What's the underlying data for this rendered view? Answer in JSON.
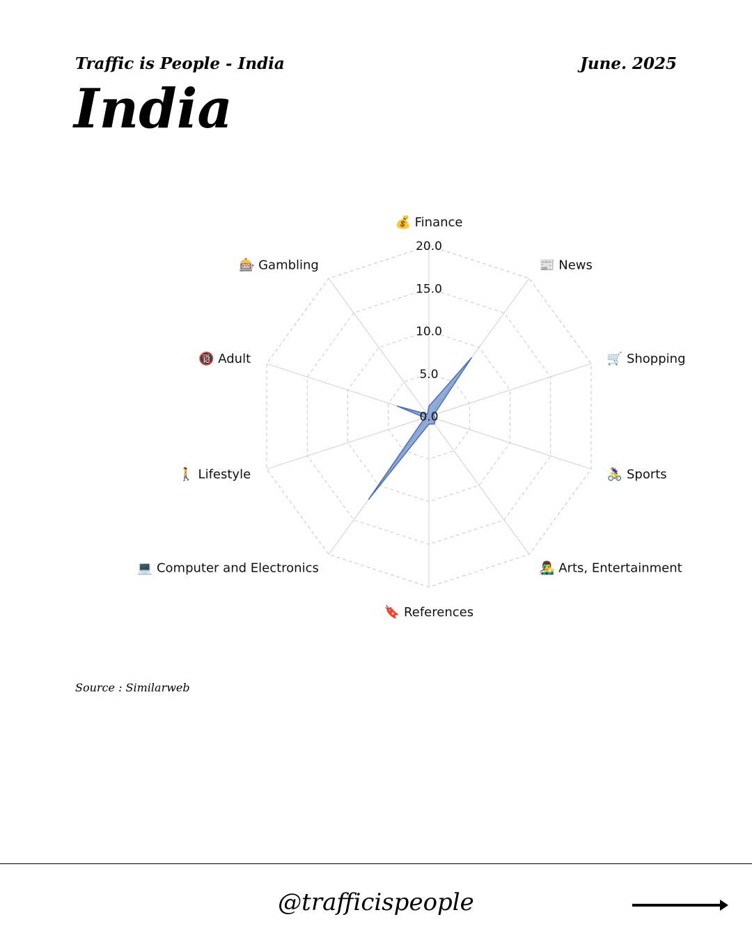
{
  "header": {
    "left": "Traffic is People - India",
    "right": "June. 2025"
  },
  "title": "India",
  "source": "Source : Similarweb",
  "footer": {
    "handle": "@trafficispeople"
  },
  "chart_data": {
    "type": "radar",
    "categories": [
      "💰 Finance",
      "📰 News",
      "🛒 Shopping",
      "🚴‍♀️ Sports",
      "👨‍🎤 Arts, Entertainment",
      "🔖 References",
      "💻 Computer and Electronics",
      "🚶 Lifestyle",
      "🔞 Adult",
      "🎰 Gambling"
    ],
    "values": [
      1.2,
      8.5,
      0.6,
      0.8,
      1.1,
      0.9,
      12.0,
      0.5,
      3.9,
      0.3
    ],
    "ticks": [
      0,
      5,
      10,
      15,
      20
    ],
    "tick_labels": [
      "0.0",
      "5.0",
      "10.0",
      "15.0",
      "20.0"
    ],
    "rlim": [
      0,
      20
    ],
    "fill_color": "#6f8fcb",
    "line_color": "#4a6db5",
    "grid": true
  }
}
